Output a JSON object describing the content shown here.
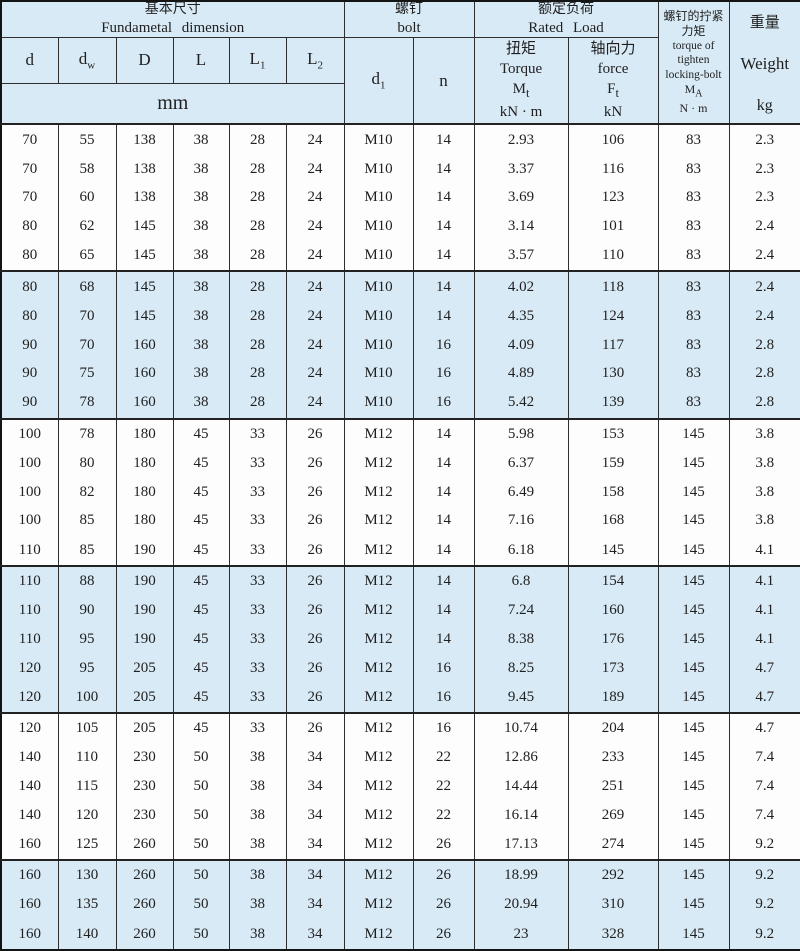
{
  "header": {
    "dim": {
      "zh": "基本尺寸",
      "en": "Fundametal dimension"
    },
    "bolt": {
      "zh": "螺钉",
      "en": "bolt"
    },
    "load": {
      "zh": "额定负荷",
      "en": "Rated Load"
    },
    "cols": {
      "d": "d",
      "dw": {
        "base": "d",
        "sub": "w"
      },
      "D": "D",
      "L": "L",
      "L1": {
        "base": "L",
        "sub": "1"
      },
      "L2": {
        "base": "L",
        "sub": "2"
      },
      "d1": {
        "base": "d",
        "sub": "1"
      },
      "n": "n"
    },
    "unit_mm": "mm",
    "torque": {
      "zh": "扭矩",
      "en": "Torque",
      "sym": "M",
      "sym_sub": "t",
      "unit": "kN · m"
    },
    "force": {
      "zh": "轴向力",
      "en": "force",
      "sym": "F",
      "sym_sub": "t",
      "unit": "kN"
    },
    "locking": {
      "zh1": "螺钉的拧紧",
      "zh2": "力矩",
      "en1": "torque of",
      "en2": "tighten",
      "en3": "locking-bolt",
      "sym": "M",
      "sym_sub": "A",
      "unit": "N · m"
    },
    "weight": {
      "zh": "重量",
      "en": "Weight",
      "unit": "kg"
    }
  },
  "table": {
    "column_keys": [
      "d",
      "dw",
      "D",
      "L",
      "L1",
      "L2",
      "d1",
      "n",
      "torque_Mt_kNm",
      "force_Ft_kN",
      "tighten_MA_Nm",
      "weight_kg"
    ],
    "group_size": 5,
    "rows": [
      [
        70,
        55,
        138,
        38,
        28,
        24,
        "M10",
        14,
        "2.93",
        106,
        83,
        "2.3"
      ],
      [
        70,
        58,
        138,
        38,
        28,
        24,
        "M10",
        14,
        "3.37",
        116,
        83,
        "2.3"
      ],
      [
        70,
        60,
        138,
        38,
        28,
        24,
        "M10",
        14,
        "3.69",
        123,
        83,
        "2.3"
      ],
      [
        80,
        62,
        145,
        38,
        28,
        24,
        "M10",
        14,
        "3.14",
        101,
        83,
        "2.4"
      ],
      [
        80,
        65,
        145,
        38,
        28,
        24,
        "M10",
        14,
        "3.57",
        110,
        83,
        "2.4"
      ],
      [
        80,
        68,
        145,
        38,
        28,
        24,
        "M10",
        14,
        "4.02",
        118,
        83,
        "2.4"
      ],
      [
        80,
        70,
        145,
        38,
        28,
        24,
        "M10",
        14,
        "4.35",
        124,
        83,
        "2.4"
      ],
      [
        90,
        70,
        160,
        38,
        28,
        24,
        "M10",
        16,
        "4.09",
        117,
        83,
        "2.8"
      ],
      [
        90,
        75,
        160,
        38,
        28,
        24,
        "M10",
        16,
        "4.89",
        130,
        83,
        "2.8"
      ],
      [
        90,
        78,
        160,
        38,
        28,
        24,
        "M10",
        16,
        "5.42",
        139,
        83,
        "2.8"
      ],
      [
        100,
        78,
        180,
        45,
        33,
        26,
        "M12",
        14,
        "5.98",
        153,
        145,
        "3.8"
      ],
      [
        100,
        80,
        180,
        45,
        33,
        26,
        "M12",
        14,
        "6.37",
        159,
        145,
        "3.8"
      ],
      [
        100,
        82,
        180,
        45,
        33,
        26,
        "M12",
        14,
        "6.49",
        158,
        145,
        "3.8"
      ],
      [
        100,
        85,
        180,
        45,
        33,
        26,
        "M12",
        14,
        "7.16",
        168,
        145,
        "3.8"
      ],
      [
        110,
        85,
        190,
        45,
        33,
        26,
        "M12",
        14,
        "6.18",
        145,
        145,
        "4.1"
      ],
      [
        110,
        88,
        190,
        45,
        33,
        26,
        "M12",
        14,
        "6.8",
        154,
        145,
        "4.1"
      ],
      [
        110,
        90,
        190,
        45,
        33,
        26,
        "M12",
        14,
        "7.24",
        160,
        145,
        "4.1"
      ],
      [
        110,
        95,
        190,
        45,
        33,
        26,
        "M12",
        14,
        "8.38",
        176,
        145,
        "4.1"
      ],
      [
        120,
        95,
        205,
        45,
        33,
        26,
        "M12",
        16,
        "8.25",
        173,
        145,
        "4.7"
      ],
      [
        120,
        100,
        205,
        45,
        33,
        26,
        "M12",
        16,
        "9.45",
        189,
        145,
        "4.7"
      ],
      [
        120,
        105,
        205,
        45,
        33,
        26,
        "M12",
        16,
        "10.74",
        204,
        145,
        "4.7"
      ],
      [
        140,
        110,
        230,
        50,
        38,
        34,
        "M12",
        22,
        "12.86",
        233,
        145,
        "7.4"
      ],
      [
        140,
        115,
        230,
        50,
        38,
        34,
        "M12",
        22,
        "14.44",
        251,
        145,
        "7.4"
      ],
      [
        140,
        120,
        230,
        50,
        38,
        34,
        "M12",
        22,
        "16.14",
        269,
        145,
        "7.4"
      ],
      [
        160,
        125,
        260,
        50,
        38,
        34,
        "M12",
        26,
        "17.13",
        274,
        145,
        "9.2"
      ],
      [
        160,
        130,
        260,
        50,
        38,
        34,
        "M12",
        26,
        "18.99",
        292,
        145,
        "9.2"
      ],
      [
        160,
        135,
        260,
        50,
        38,
        34,
        "M12",
        26,
        "20.94",
        310,
        145,
        "9.2"
      ],
      [
        160,
        140,
        260,
        50,
        38,
        34,
        "M12",
        26,
        "23",
        328,
        145,
        "9.2"
      ]
    ]
  },
  "colors": {
    "band_blue": "#d8eaf6",
    "row_white": "#fdfdfd",
    "grid_line": "#2e2e2e",
    "text": "#1f1f1f"
  }
}
